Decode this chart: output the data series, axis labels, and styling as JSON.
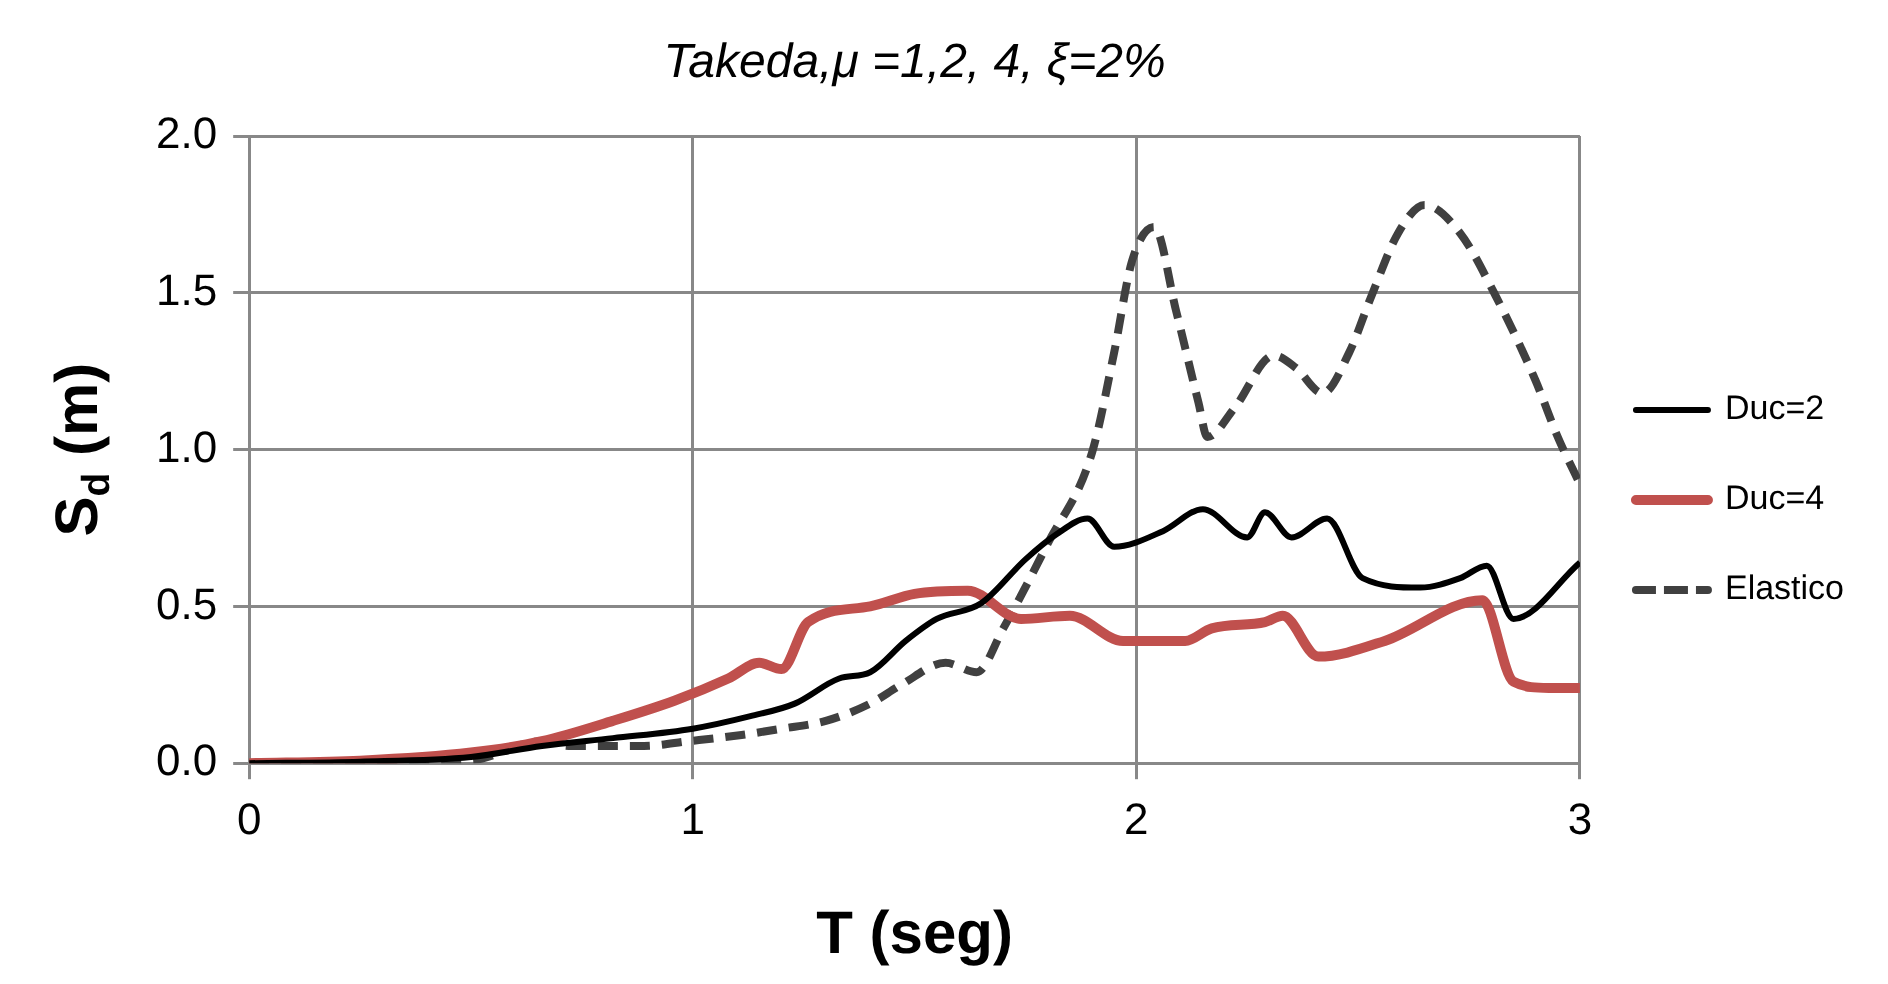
{
  "chart_data": {
    "type": "line",
    "title": "Takeda,μ =1,2, 4, ξ=2%",
    "xlabel": "T (seg)",
    "ylabel": "S$_{d}$ (m)",
    "xlim": [
      0,
      3
    ],
    "xticks": [
      0,
      1,
      2,
      3
    ],
    "ylim": [
      0,
      2
    ],
    "yticks": [
      {
        "value": 0,
        "label": "0.0"
      },
      {
        "value": 0.5,
        "label": "0.5"
      },
      {
        "value": 1,
        "label": "1.0"
      },
      {
        "value": 1.5,
        "label": "1.5"
      },
      {
        "value": 2,
        "label": "2.0"
      }
    ],
    "grid": true,
    "legend": "right",
    "marker": "none",
    "series": [
      {
        "name": "Duc=2",
        "color": "#000000",
        "line_style": "solid",
        "x": [
          0,
          0.25,
          0.5,
          0.66,
          0.82,
          1.0,
          1.13,
          1.23,
          1.33,
          1.4,
          1.48,
          1.55,
          1.65,
          1.75,
          1.82,
          1.89,
          1.95,
          2.06,
          2.15,
          2.25,
          2.29,
          2.35,
          2.43,
          2.51,
          2.64,
          2.73,
          2.79,
          2.85,
          3.0
        ],
        "values": [
          0,
          0.005,
          0.02,
          0.055,
          0.08,
          0.11,
          0.15,
          0.19,
          0.27,
          0.29,
          0.39,
          0.46,
          0.51,
          0.65,
          0.73,
          0.78,
          0.69,
          0.74,
          0.81,
          0.72,
          0.8,
          0.72,
          0.78,
          0.59,
          0.56,
          0.59,
          0.63,
          0.46,
          0.64
        ]
      },
      {
        "name": "Duc=4",
        "color": "#c0504d",
        "line_style": "solid",
        "x": [
          0,
          0.25,
          0.5,
          0.66,
          0.82,
          0.96,
          1.08,
          1.15,
          1.2,
          1.26,
          1.4,
          1.5,
          1.62,
          1.74,
          1.85,
          1.97,
          2.11,
          2.17,
          2.29,
          2.33,
          2.41,
          2.56,
          2.78,
          2.85,
          2.93,
          3.0
        ],
        "values": [
          0,
          0.008,
          0.034,
          0.07,
          0.135,
          0.2,
          0.27,
          0.32,
          0.3,
          0.45,
          0.5,
          0.54,
          0.55,
          0.46,
          0.47,
          0.39,
          0.39,
          0.43,
          0.45,
          0.47,
          0.34,
          0.39,
          0.52,
          0.26,
          0.24,
          0.24
        ]
      },
      {
        "name": "Elastico",
        "color": "#404040",
        "line_style": "dashed",
        "x": [
          0,
          0.25,
          0.5,
          0.66,
          0.72,
          0.89,
          0.99,
          1.11,
          1.2,
          1.3,
          1.4,
          1.47,
          1.57,
          1.64,
          1.7,
          1.8,
          1.9,
          1.95,
          1.99,
          2.04,
          2.09,
          2.14,
          2.16,
          2.22,
          2.31,
          2.36,
          2.42,
          2.48,
          2.53,
          2.59,
          2.65,
          2.73,
          2.81,
          2.9,
          2.95,
          3.0
        ],
        "values": [
          0,
          0.004,
          0.01,
          0.07,
          0.055,
          0.055,
          0.07,
          0.09,
          0.11,
          0.135,
          0.19,
          0.25,
          0.32,
          0.29,
          0.43,
          0.7,
          0.99,
          1.31,
          1.6,
          1.71,
          1.44,
          1.15,
          1.04,
          1.13,
          1.3,
          1.26,
          1.18,
          1.31,
          1.49,
          1.69,
          1.78,
          1.69,
          1.49,
          1.22,
          1.04,
          0.89
        ]
      }
    ]
  }
}
